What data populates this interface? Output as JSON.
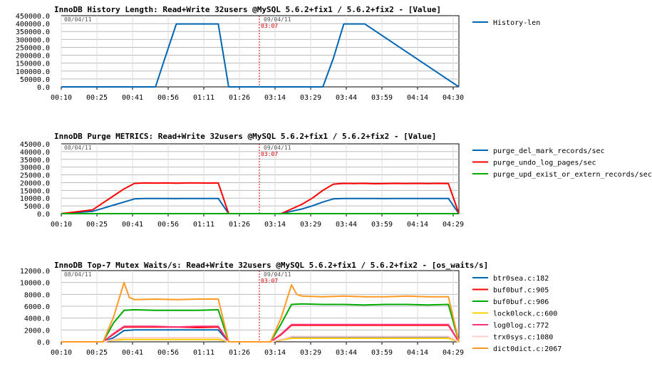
{
  "chart_data": [
    {
      "type": "line",
      "title": "InnoDB History Length: Read+Write 32users @MySQL 5.6.2+fix1 / 5.6.2+fix2 - [Value]",
      "left_date": "08/04/11",
      "right_date": "09/04/11",
      "marker_label": "03:07",
      "x_ticks": [
        "00:10",
        "00:25",
        "00:41",
        "00:56",
        "01:11",
        "01:26",
        "03:14",
        "03:29",
        "03:44",
        "03:59",
        "04:14",
        "04:30"
      ],
      "y_ticks": [
        "450000.0",
        "400000.0",
        "350000.0",
        "300000.0",
        "250000.0",
        "200000.0",
        "150000.0",
        "100000.0",
        "50000.0",
        "0.0"
      ],
      "ylim": [
        0,
        450000
      ],
      "grid": true,
      "legend_position": "right",
      "series": [
        {
          "name": "History-len",
          "color": "#0066b3",
          "x": [
            0,
            9,
            10,
            11,
            12,
            15,
            16,
            17,
            18,
            19,
            25,
            26,
            27,
            28,
            29,
            38
          ],
          "y": [
            0,
            0,
            200000,
            398000,
            398000,
            398000,
            0,
            0,
            0,
            0,
            0,
            180000,
            398000,
            398000,
            398000,
            0
          ]
        }
      ]
    },
    {
      "type": "line",
      "title": "InnoDB Purge METRICS: Read+Write 32users @MySQL 5.6.2+fix1 / 5.6.2+fix2 - [Value]",
      "left_date": "08/04/11",
      "right_date": "09/04/11",
      "marker_label": "03:07",
      "x_ticks": [
        "00:10",
        "00:25",
        "00:41",
        "00:56",
        "01:11",
        "01:26",
        "03:14",
        "03:29",
        "03:44",
        "03:59",
        "04:14",
        "04:29"
      ],
      "y_ticks": [
        "45000.0",
        "40000.0",
        "35000.0",
        "30000.0",
        "25000.0",
        "20000.0",
        "15000.0",
        "10000.0",
        "5000.0",
        "0.0"
      ],
      "ylim": [
        0,
        45000
      ],
      "grid": true,
      "legend_position": "right",
      "series": [
        {
          "name": "purge_del_mark_records/sec",
          "color": "#0066b3",
          "x": [
            0,
            3,
            4,
            5,
            6,
            7,
            8,
            9,
            10,
            11,
            12,
            13,
            14,
            15,
            16,
            17,
            18,
            19,
            20,
            21,
            22,
            23,
            24,
            25,
            26,
            27,
            28,
            29,
            30,
            31,
            32,
            33,
            34,
            35,
            36,
            37,
            38
          ],
          "y": [
            0,
            1500,
            3500,
            5500,
            7500,
            9500,
            9800,
            9800,
            9800,
            9700,
            9800,
            9800,
            9800,
            9800,
            0,
            0,
            0,
            0,
            0,
            0,
            1500,
            3000,
            5000,
            7500,
            9500,
            9800,
            9800,
            9800,
            9800,
            9700,
            9800,
            9800,
            9800,
            9800,
            9800,
            9800,
            0
          ]
        },
        {
          "name": "purge_undo_log_pages/sec",
          "color": "#ff0000",
          "x": [
            0,
            3,
            4,
            5,
            6,
            7,
            8,
            9,
            10,
            11,
            12,
            13,
            14,
            15,
            16,
            17,
            18,
            19,
            20,
            21,
            22,
            23,
            24,
            25,
            26,
            27,
            28,
            29,
            30,
            31,
            32,
            33,
            34,
            35,
            36,
            37,
            38
          ],
          "y": [
            0,
            2500,
            7000,
            11500,
            16000,
            19500,
            19800,
            19700,
            19800,
            19600,
            19800,
            19800,
            19700,
            19800,
            0,
            0,
            0,
            0,
            0,
            0,
            3000,
            6000,
            10000,
            15000,
            19000,
            19500,
            19400,
            19500,
            19300,
            19400,
            19500,
            19400,
            19500,
            19400,
            19500,
            19400,
            0
          ]
        },
        {
          "name": "purge_upd_exist_or_extern_records/sec",
          "color": "#00aa00",
          "x": [
            0,
            38
          ],
          "y": [
            0,
            0
          ]
        }
      ]
    },
    {
      "type": "line",
      "title": "InnoDB Top-7 Mutex Waits/s: Read+Write 32users @MySQL 5.6.2+fix1 / 5.6.2+fix2 - [os_waits/s]",
      "left_date": "08/04/11",
      "right_date": "09/04/11",
      "marker_label": "03:07",
      "x_ticks": [
        "00:10",
        "00:25",
        "00:41",
        "00:56",
        "01:11",
        "01:26",
        "03:14",
        "03:29",
        "03:44",
        "03:59",
        "04:14",
        "04:29"
      ],
      "y_ticks": [
        "12000.0",
        "10000.0",
        "8000.0",
        "6000.0",
        "4000.0",
        "2000.0",
        "0.0"
      ],
      "ylim": [
        0,
        12000
      ],
      "grid": true,
      "legend_position": "right",
      "series": [
        {
          "name": "btr0sea.c:182",
          "color": "#0066b3",
          "x": [
            0,
            4,
            5,
            6,
            7,
            9,
            11,
            13,
            15,
            16,
            20,
            21,
            22,
            23,
            25,
            27,
            29,
            31,
            33,
            35,
            37,
            38
          ],
          "y": [
            0,
            0,
            700,
            1900,
            2000,
            2000,
            2000,
            2000,
            2000,
            0,
            0,
            300,
            700,
            800,
            800,
            800,
            800,
            800,
            800,
            800,
            800,
            0
          ]
        },
        {
          "name": "buf0buf.c:905",
          "color": "#ff0000",
          "x": [
            0,
            4,
            5,
            6,
            7,
            9,
            11,
            13,
            15,
            16,
            20,
            21,
            22,
            23,
            25,
            27,
            29,
            31,
            33,
            35,
            37,
            38
          ],
          "y": [
            0,
            0,
            1300,
            2500,
            2500,
            2500,
            2500,
            2400,
            2500,
            0,
            0,
            1200,
            2800,
            2800,
            2800,
            2800,
            2800,
            2800,
            2800,
            2800,
            2800,
            0
          ]
        },
        {
          "name": "buf0buf.c:906",
          "color": "#00aa00",
          "x": [
            0,
            4,
            5,
            6,
            7,
            9,
            11,
            13,
            15,
            16,
            20,
            21,
            22,
            23,
            25,
            27,
            29,
            31,
            33,
            35,
            37,
            38
          ],
          "y": [
            0,
            0,
            3200,
            5300,
            5400,
            5300,
            5300,
            5300,
            5400,
            0,
            0,
            3000,
            6300,
            6400,
            6300,
            6300,
            6200,
            6300,
            6300,
            6200,
            6300,
            0
          ]
        },
        {
          "name": "lock0lock.c:600",
          "color": "#ffcc00",
          "x": [
            0,
            4,
            5,
            6,
            7,
            9,
            11,
            13,
            15,
            16,
            20,
            21,
            22,
            23,
            25,
            27,
            29,
            31,
            33,
            35,
            37,
            38
          ],
          "y": [
            0,
            0,
            300,
            400,
            400,
            400,
            400,
            400,
            400,
            0,
            0,
            300,
            600,
            600,
            600,
            600,
            600,
            600,
            600,
            600,
            600,
            0
          ]
        },
        {
          "name": "log0log.c:772",
          "color": "#ff3377",
          "x": [
            0,
            4,
            5,
            6,
            7,
            9,
            11,
            13,
            15,
            16,
            20,
            21,
            22,
            23,
            25,
            27,
            29,
            31,
            33,
            35,
            37,
            38
          ],
          "y": [
            0,
            0,
            1400,
            2600,
            2600,
            2600,
            2500,
            2600,
            2600,
            0,
            0,
            1300,
            2900,
            2900,
            2900,
            2900,
            2900,
            2900,
            2900,
            2900,
            2900,
            0
          ]
        },
        {
          "name": "trx0sys.c:1080",
          "color": "#ffcccc",
          "x": [
            0,
            4,
            5,
            6,
            7,
            9,
            11,
            13,
            15,
            16,
            20,
            21,
            22,
            23,
            25,
            27,
            29,
            31,
            33,
            35,
            37,
            38
          ],
          "y": [
            0,
            0,
            400,
            700,
            700,
            700,
            700,
            700,
            700,
            0,
            0,
            400,
            900,
            900,
            900,
            900,
            900,
            900,
            900,
            900,
            900,
            0
          ]
        },
        {
          "name": "dict0dict.c:2067",
          "color": "#ff9922",
          "x": [
            0,
            4,
            5,
            6,
            6.5,
            7,
            9,
            11,
            13,
            15,
            16,
            20,
            21,
            22,
            22.5,
            23,
            25,
            27,
            29,
            31,
            33,
            35,
            37,
            38
          ],
          "y": [
            0,
            0,
            4200,
            10000,
            7500,
            7100,
            7200,
            7100,
            7200,
            7200,
            0,
            0,
            4000,
            9600,
            8000,
            7700,
            7600,
            7700,
            7600,
            7600,
            7700,
            7600,
            7600,
            0
          ]
        }
      ]
    }
  ]
}
